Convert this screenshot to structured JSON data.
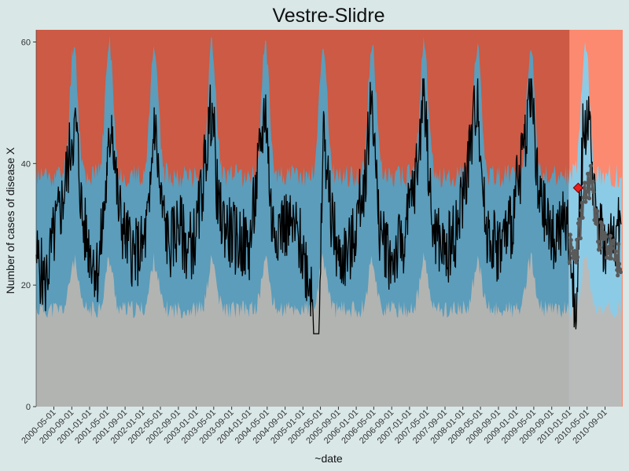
{
  "chart_data": {
    "type": "area",
    "title": "Vestre-Slidre",
    "xlabel": "~date",
    "ylabel": "Number of cases of disease X",
    "ylim": [
      0,
      62
    ],
    "yticks": [
      0,
      20,
      40,
      60
    ],
    "xlim": [
      "2000-01-01",
      "2010-12-31"
    ],
    "xticks": [
      "2000-05-01",
      "2000-09-01",
      "2001-01-01",
      "2001-05-01",
      "2001-09-01",
      "2002-01-01",
      "2002-05-01",
      "2002-09-01",
      "2003-01-01",
      "2003-05-01",
      "2003-09-01",
      "2004-01-01",
      "2004-05-01",
      "2004-09-01",
      "2005-01-01",
      "2005-05-01",
      "2005-09-01",
      "2006-01-01",
      "2006-05-01",
      "2006-09-01",
      "2007-01-01",
      "2007-05-01",
      "2007-09-01",
      "2008-01-01",
      "2008-05-01",
      "2008-09-01",
      "2009-01-01",
      "2009-05-01",
      "2009-09-01",
      "2010-01-01",
      "2010-05-01",
      "2010-09-01"
    ],
    "grid": false,
    "legend": "none",
    "background_colors": {
      "high": "#cc5a44",
      "normal": "#5b9dbb",
      "low": "#b2b4b2",
      "future_high": "#fb8a70",
      "future_normal": "#8ccbe6",
      "future_low": "#b9bbba"
    },
    "forecast_start": "2010-01-01",
    "seasonal_profile": {
      "peak_dates": [
        "2000-09-15",
        "2001-05-15",
        "2002-03-20",
        "2003-04-20",
        "2004-04-20",
        "2005-05-20",
        "2006-04-20",
        "2007-04-10",
        "2008-04-10",
        "2009-04-10",
        "2010-04-20"
      ],
      "low_upper": [
        16,
        24
      ],
      "high_lower": [
        38,
        60
      ],
      "observed_range": [
        13,
        50
      ]
    },
    "series": [
      {
        "name": "",
        "kind": "observed",
        "color": "#000000",
        "points": [
          [
            "2000-01-01",
            25
          ],
          [
            "2000-03-01",
            20
          ],
          [
            "2000-05-01",
            28
          ],
          [
            "2000-07-01",
            34
          ],
          [
            "2000-09-01",
            44
          ],
          [
            "2000-10-01",
            46
          ],
          [
            "2000-11-15",
            30
          ],
          [
            "2001-01-01",
            26
          ],
          [
            "2001-03-01",
            22
          ],
          [
            "2001-05-01",
            38
          ],
          [
            "2001-06-01",
            48
          ],
          [
            "2001-07-15",
            33
          ],
          [
            "2001-09-01",
            28
          ],
          [
            "2001-11-01",
            25
          ],
          [
            "2002-01-01",
            26
          ],
          [
            "2002-02-15",
            32
          ],
          [
            "2002-03-20",
            48
          ],
          [
            "2002-05-01",
            34
          ],
          [
            "2002-07-01",
            26
          ],
          [
            "2002-09-01",
            30
          ],
          [
            "2002-11-01",
            26
          ],
          [
            "2003-01-01",
            28
          ],
          [
            "2003-03-01",
            40
          ],
          [
            "2003-04-20",
            50
          ],
          [
            "2003-06-01",
            32
          ],
          [
            "2003-09-01",
            28
          ],
          [
            "2004-01-01",
            26
          ],
          [
            "2004-03-15",
            42
          ],
          [
            "2004-04-20",
            50
          ],
          [
            "2004-06-01",
            30
          ],
          [
            "2004-09-01",
            30
          ],
          [
            "2004-12-01",
            28
          ],
          [
            "2005-03-01",
            20
          ],
          [
            "2005-04-15",
            0
          ],
          [
            "2005-05-20",
            46
          ],
          [
            "2005-07-01",
            34
          ],
          [
            "2005-09-01",
            24
          ],
          [
            "2005-12-01",
            26
          ],
          [
            "2006-03-01",
            38
          ],
          [
            "2006-04-20",
            52
          ],
          [
            "2006-06-01",
            30
          ],
          [
            "2006-09-01",
            24
          ],
          [
            "2006-12-01",
            28
          ],
          [
            "2007-03-01",
            40
          ],
          [
            "2007-04-10",
            54
          ],
          [
            "2007-06-01",
            30
          ],
          [
            "2007-09-01",
            25
          ],
          [
            "2007-12-01",
            30
          ],
          [
            "2008-03-01",
            44
          ],
          [
            "2008-04-10",
            52
          ],
          [
            "2008-06-01",
            30
          ],
          [
            "2008-09-01",
            26
          ],
          [
            "2008-12-01",
            30
          ],
          [
            "2009-03-01",
            44
          ],
          [
            "2009-04-10",
            54
          ],
          [
            "2009-06-01",
            34
          ],
          [
            "2009-09-01",
            28
          ],
          [
            "2009-12-15",
            30
          ],
          [
            "2010-01-20",
            22
          ],
          [
            "2010-02-10",
            14
          ],
          [
            "2010-03-01",
            26
          ],
          [
            "2010-04-01",
            44
          ],
          [
            "2010-05-01",
            48
          ],
          [
            "2010-06-01",
            40
          ],
          [
            "2010-07-15",
            32
          ],
          [
            "2010-09-01",
            26
          ],
          [
            "2010-11-01",
            28
          ],
          [
            "2010-12-20",
            30
          ]
        ]
      },
      {
        "name": "",
        "kind": "predicted",
        "color": "#5a5a5a",
        "points": [
          [
            "2010-01-01",
            26
          ],
          [
            "2010-02-01",
            24
          ],
          [
            "2010-03-01",
            28
          ],
          [
            "2010-04-01",
            32
          ],
          [
            "2010-05-01",
            36
          ],
          [
            "2010-06-01",
            38
          ],
          [
            "2010-07-01",
            30
          ],
          [
            "2010-08-01",
            28
          ],
          [
            "2010-09-01",
            27
          ],
          [
            "2010-10-01",
            26
          ],
          [
            "2010-11-01",
            25
          ],
          [
            "2010-12-01",
            24
          ],
          [
            "2010-12-20",
            21
          ]
        ]
      }
    ],
    "annotations": [
      {
        "kind": "outbreak",
        "shape": "diamond",
        "color": "#e8201e",
        "x": "2010-03-01",
        "y": 36
      }
    ]
  }
}
